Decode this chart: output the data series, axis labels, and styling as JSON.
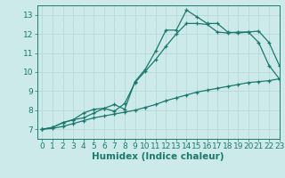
{
  "title": "",
  "xlabel": "Humidex (Indice chaleur)",
  "ylabel": "",
  "background_color": "#cceaea",
  "line_color": "#1a7a6e",
  "xlim": [
    -0.5,
    23
  ],
  "ylim": [
    6.5,
    13.5
  ],
  "xticks": [
    0,
    1,
    2,
    3,
    4,
    5,
    6,
    7,
    8,
    9,
    10,
    11,
    12,
    13,
    14,
    15,
    16,
    17,
    18,
    19,
    20,
    21,
    22,
    23
  ],
  "yticks": [
    7,
    8,
    9,
    10,
    11,
    12,
    13
  ],
  "curve1_x": [
    0,
    1,
    2,
    3,
    4,
    5,
    6,
    7,
    8,
    9,
    10,
    11,
    12,
    13,
    14,
    15,
    16,
    17,
    18,
    19,
    20,
    21,
    22,
    23
  ],
  "curve1_y": [
    7.0,
    7.1,
    7.35,
    7.5,
    7.85,
    8.05,
    8.1,
    8.3,
    8.05,
    9.5,
    10.15,
    11.1,
    12.2,
    12.2,
    13.25,
    12.9,
    12.55,
    12.55,
    12.1,
    12.05,
    12.1,
    12.15,
    11.55,
    10.35
  ],
  "curve2_x": [
    0,
    1,
    2,
    3,
    4,
    5,
    6,
    7,
    8,
    9,
    10,
    11,
    12,
    13,
    14,
    15,
    16,
    17,
    18,
    19,
    20,
    21,
    22,
    23
  ],
  "curve2_y": [
    7.0,
    7.1,
    7.35,
    7.5,
    7.6,
    7.85,
    8.1,
    7.95,
    8.35,
    9.45,
    10.05,
    10.65,
    11.35,
    12.0,
    12.55,
    12.55,
    12.5,
    12.1,
    12.05,
    12.1,
    12.1,
    11.55,
    10.35,
    9.65
  ],
  "curve3_x": [
    0,
    1,
    2,
    3,
    4,
    5,
    6,
    7,
    8,
    9,
    10,
    11,
    12,
    13,
    14,
    15,
    16,
    17,
    18,
    19,
    20,
    21,
    22,
    23
  ],
  "curve3_y": [
    7.0,
    7.05,
    7.15,
    7.3,
    7.45,
    7.6,
    7.7,
    7.8,
    7.9,
    8.0,
    8.15,
    8.3,
    8.5,
    8.65,
    8.8,
    8.95,
    9.05,
    9.15,
    9.25,
    9.35,
    9.45,
    9.5,
    9.55,
    9.65
  ],
  "grid_color": "#b8d8d8",
  "tick_fontsize": 6.5,
  "xlabel_fontsize": 7.5,
  "marker": "+",
  "marker_size": 3.5,
  "linewidth": 0.9
}
